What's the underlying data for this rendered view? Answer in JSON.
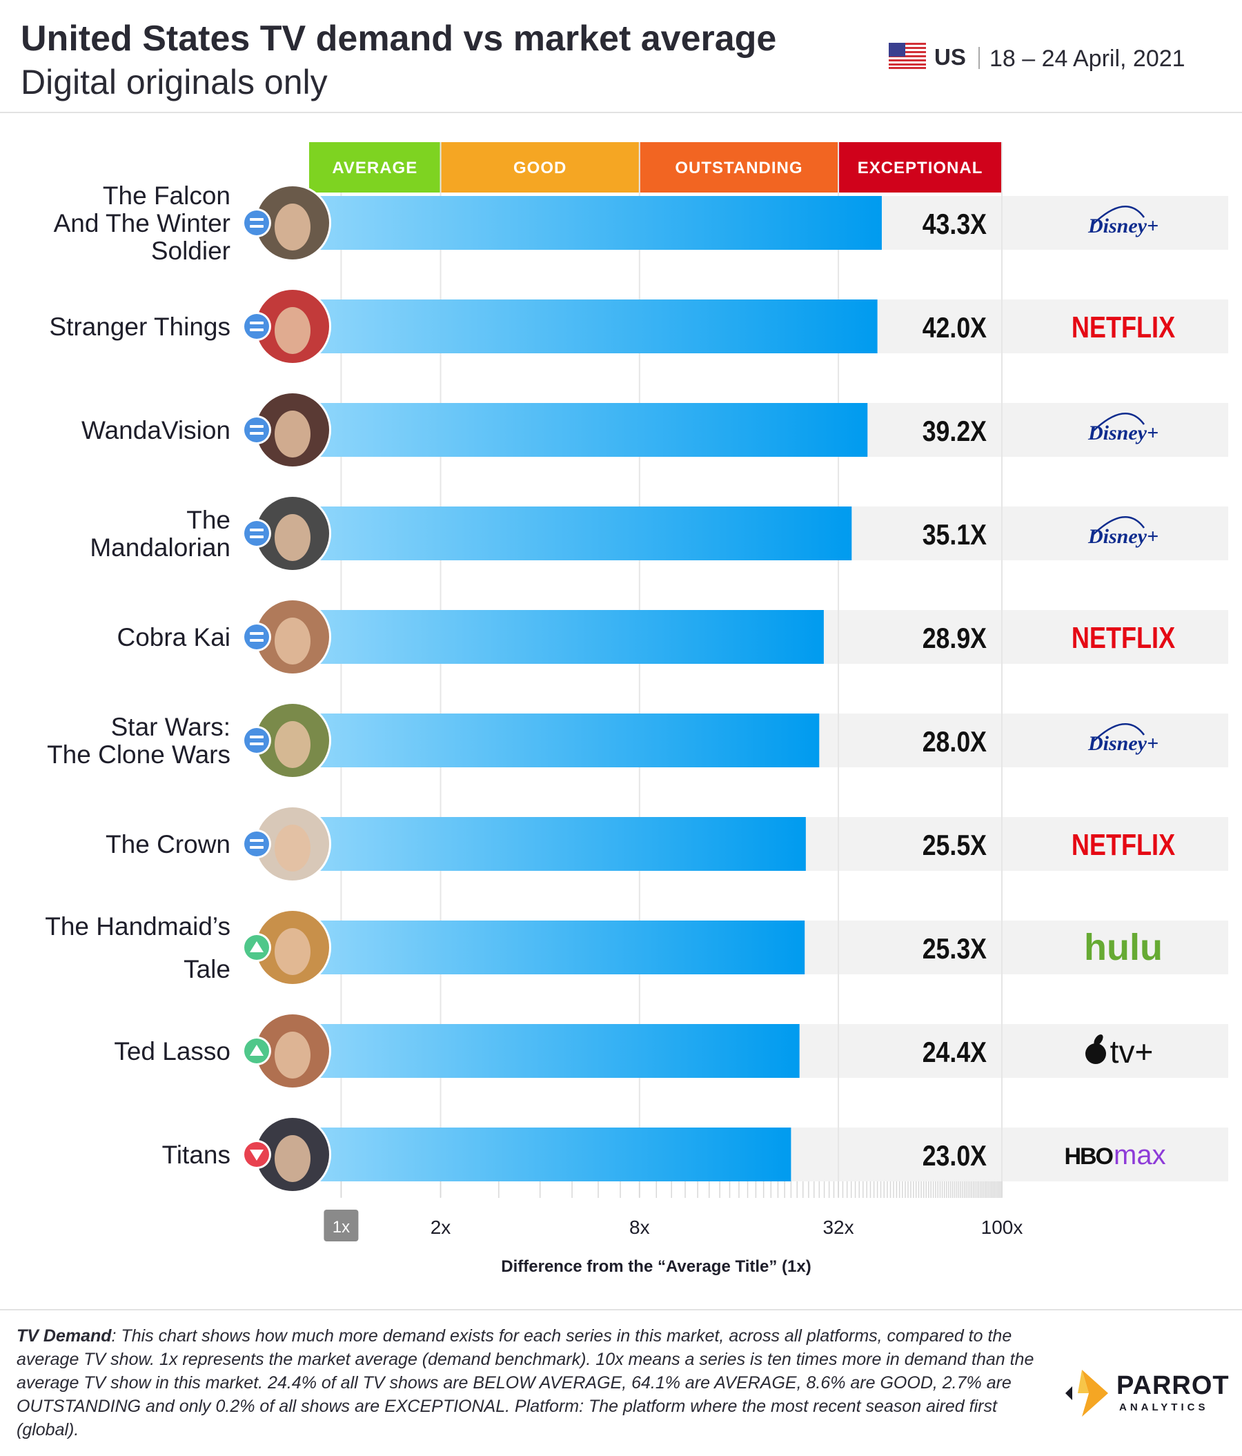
{
  "header": {
    "title": "United States TV demand vs market average",
    "subtitle": "Digital originals only",
    "country": "US",
    "date_range": "18 – 24 April, 2021"
  },
  "colors": {
    "average": "#7ed321",
    "good": "#f5a623",
    "outstanding": "#f26522",
    "exceptional": "#d0021b",
    "bar_start": "#8dd5fb",
    "bar_end": "#009bef",
    "trend_same": "#4a90e2",
    "trend_up": "#4fc78a",
    "trend_down": "#e8414f",
    "netflix": "#e50914",
    "hulu": "#66aa33",
    "disney": "#0f2c8e",
    "hbomax": "#8e3cd8"
  },
  "chart_data": {
    "type": "bar",
    "orientation": "horizontal",
    "scale": "log",
    "xlim": [
      1,
      100
    ],
    "xlabel": "Difference from the “Average Title” (1x)",
    "ticks": [
      "1x",
      "2x",
      "8x",
      "32x",
      "100x"
    ],
    "tick_values": [
      1,
      2,
      8,
      32,
      100
    ],
    "bands": [
      {
        "label": "AVERAGE",
        "from": 0.8,
        "to": 2
      },
      {
        "label": "GOOD",
        "from": 2,
        "to": 8
      },
      {
        "label": "OUTSTANDING",
        "from": 8,
        "to": 32
      },
      {
        "label": "EXCEPTIONAL",
        "from": 32,
        "to": 100
      }
    ],
    "categories": [
      "The Falcon And The Winter Soldier",
      "Stranger Things",
      "WandaVision",
      "The Mandalorian",
      "Cobra Kai",
      "Star Wars: The Clone Wars",
      "The Crown",
      "The Handmaid’s Tale",
      "Ted Lasso",
      "Titans"
    ],
    "values": [
      43.3,
      42.0,
      39.2,
      35.1,
      28.9,
      28.0,
      25.5,
      25.3,
      24.4,
      23.0
    ],
    "value_labels": [
      "43.3X",
      "42.0X",
      "39.2X",
      "35.1X",
      "28.9X",
      "28.0X",
      "25.5X",
      "25.3X",
      "24.4X",
      "23.0X"
    ],
    "title_lines": [
      [
        "The Falcon",
        "And The Winter",
        "Soldier"
      ],
      [
        "Stranger Things"
      ],
      [
        "WandaVision"
      ],
      [
        "The",
        "Mandalorian"
      ],
      [
        "Cobra Kai"
      ],
      [
        "Star Wars:",
        "The Clone Wars"
      ],
      [
        "The Crown"
      ],
      [
        "The Handmaid’s",
        "Tale"
      ],
      [
        "Ted Lasso"
      ],
      [
        "Titans"
      ]
    ],
    "trends": [
      "same",
      "same",
      "same",
      "same",
      "same",
      "same",
      "same",
      "up",
      "up",
      "down"
    ],
    "platforms": [
      "Disney+",
      "NETFLIX",
      "Disney+",
      "Disney+",
      "NETFLIX",
      "Disney+",
      "NETFLIX",
      "hulu",
      "tv+",
      "HBO max"
    ]
  },
  "footer": {
    "note_label": "TV Demand",
    "note_text": ": This chart shows how much more demand exists for each series in this market, across all platforms, compared to the average TV show. 1x represents the market average (demand benchmark). 10x means a series is ten times more in demand than the average TV show in this market. 24.4% of all TV shows are BELOW AVERAGE, 64.1% are AVERAGE, 8.6% are GOOD, 2.7% are OUTSTANDING and only 0.2% of all shows are EXCEPTIONAL. Platform: The platform where the most recent season aired first (global).",
    "brand": "PARROT",
    "brand_sub": "ANALYTICS"
  }
}
